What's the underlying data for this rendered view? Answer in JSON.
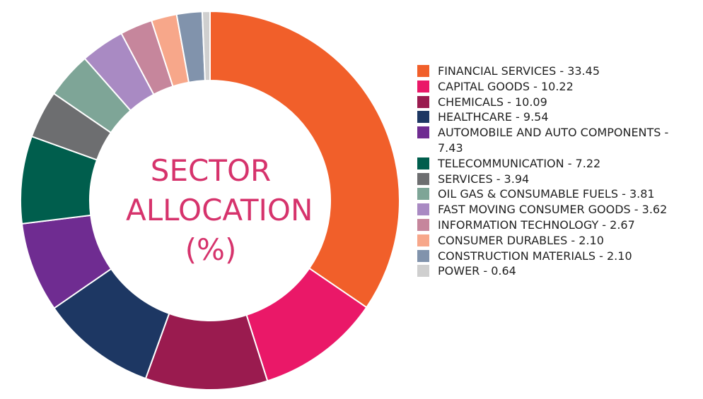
{
  "chart_data": {
    "type": "donut",
    "title": "SECTOR ALLOCATION (%)",
    "categories": [
      "FINANCIAL SERVICES - 33.45",
      "CAPITAL GOODS - 10.22",
      "CHEMICALS - 10.09",
      "HEALTHCARE - 9.54",
      "AUTOMOBILE AND AUTO COMPONENTS - 7.43",
      "TELECOMMUNICATION - 7.22",
      "SERVICES - 3.94",
      "OIL GAS & CONSUMABLE FUELS - 3.81",
      "FAST MOVING CONSUMER GOODS - 3.62",
      "INFORMATION TECHNOLOGY - 2.67",
      "CONSUMER DURABLES - 2.10",
      "CONSTRUCTION MATERIALS - 2.10",
      "POWER - 0.64"
    ],
    "values": [
      33.45,
      10.22,
      10.09,
      9.54,
      7.43,
      7.22,
      3.94,
      3.81,
      3.62,
      2.67,
      2.1,
      2.1,
      0.64
    ],
    "colors": [
      "#f15f2a",
      "#ea1868",
      "#9a1b4f",
      "#1d3763",
      "#6f2c91",
      "#005e4d",
      "#6d6e70",
      "#7ea597",
      "#a98ac3",
      "#c6869c",
      "#f7a78a",
      "#8193ac",
      "#cfcfcf"
    ]
  }
}
